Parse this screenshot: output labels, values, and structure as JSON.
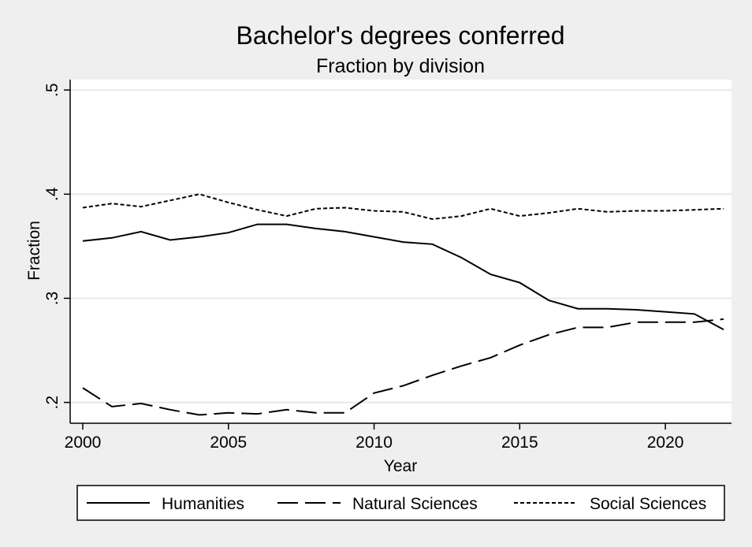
{
  "chart_data": {
    "type": "line",
    "title": "Bachelor's degrees conferred",
    "subtitle": "Fraction by division",
    "xlabel": "Year",
    "ylabel": "Fraction",
    "xlim": [
      2000,
      2022
    ],
    "ylim": [
      0.18,
      0.51
    ],
    "x_ticks": [
      2000,
      2005,
      2010,
      2015,
      2020
    ],
    "x_tick_labels": [
      "2000",
      "2005",
      "2010",
      "2015",
      "2020"
    ],
    "y_ticks": [
      0.2,
      0.3,
      0.4,
      0.5
    ],
    "y_tick_labels": [
      ".2",
      ".3",
      ".4",
      ".5"
    ],
    "grid": true,
    "legend_position": "bottom",
    "x": [
      2000,
      2001,
      2002,
      2003,
      2004,
      2005,
      2006,
      2007,
      2008,
      2009,
      2010,
      2011,
      2012,
      2013,
      2014,
      2015,
      2016,
      2017,
      2018,
      2019,
      2020,
      2021,
      2022
    ],
    "series": [
      {
        "name": "Humanities",
        "style": "solid",
        "values": [
          0.355,
          0.358,
          0.364,
          0.356,
          0.359,
          0.363,
          0.371,
          0.371,
          0.367,
          0.364,
          0.359,
          0.354,
          0.352,
          0.339,
          0.323,
          0.315,
          0.298,
          0.29,
          0.29,
          0.289,
          0.287,
          0.285,
          0.27
        ]
      },
      {
        "name": "Natural Sciences",
        "style": "dashed",
        "values": [
          0.214,
          0.196,
          0.199,
          0.193,
          0.188,
          0.19,
          0.189,
          0.193,
          0.19,
          0.19,
          0.209,
          0.216,
          0.226,
          0.235,
          0.243,
          0.255,
          0.265,
          0.272,
          0.272,
          0.277,
          0.277,
          0.277,
          0.28
        ]
      },
      {
        "name": "Social Sciences",
        "style": "dotted",
        "values": [
          0.387,
          0.391,
          0.388,
          0.394,
          0.4,
          0.392,
          0.385,
          0.379,
          0.386,
          0.387,
          0.384,
          0.383,
          0.376,
          0.379,
          0.386,
          0.379,
          0.382,
          0.386,
          0.383,
          0.384,
          0.384,
          0.385,
          0.386
        ]
      }
    ]
  },
  "colors": {
    "background": "#efefef",
    "plot_area": "#ffffff",
    "gridline": "#e8e8e8",
    "line": "#000000"
  }
}
